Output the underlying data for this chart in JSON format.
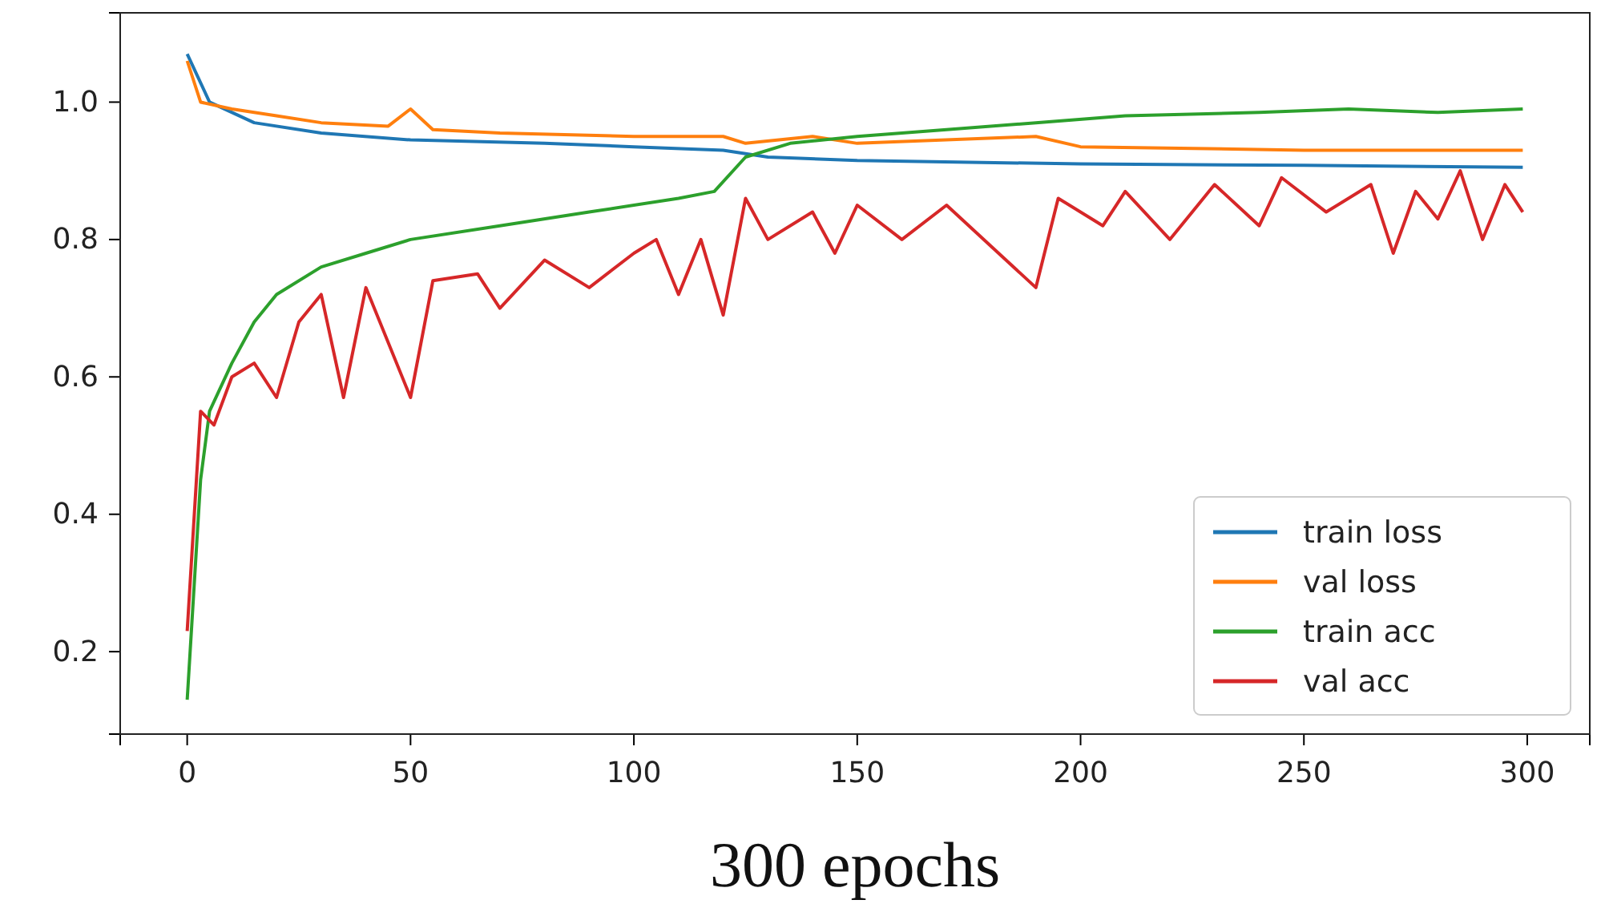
{
  "chart_data": {
    "type": "line",
    "xlabel": "300 epochs",
    "xlim": [
      -15,
      314
    ],
    "ylim": [
      0.08,
      1.13
    ],
    "xticks": [
      0,
      50,
      100,
      150,
      200,
      250,
      300
    ],
    "yticks": [
      {
        "value": 0.2,
        "label": "0.2"
      },
      {
        "value": 0.4,
        "label": "0.4"
      },
      {
        "value": 0.6,
        "label": "0.6"
      },
      {
        "value": 0.8,
        "label": "0.8"
      },
      {
        "value": 1.0,
        "label": "1.0"
      }
    ],
    "grid": false,
    "legend": "bottom right",
    "series": [
      {
        "name": "train loss",
        "color": "#1f77b4",
        "x": [
          0,
          5,
          15,
          30,
          50,
          80,
          100,
          120,
          130,
          150,
          200,
          250,
          299
        ],
        "values": [
          1.07,
          1.0,
          0.97,
          0.955,
          0.945,
          0.94,
          0.935,
          0.93,
          0.92,
          0.915,
          0.91,
          0.908,
          0.905
        ]
      },
      {
        "name": "val loss",
        "color": "#ff7f0e",
        "x": [
          0,
          3,
          10,
          20,
          30,
          45,
          50,
          55,
          70,
          100,
          120,
          125,
          140,
          150,
          190,
          200,
          250,
          299
        ],
        "values": [
          1.06,
          1.0,
          0.99,
          0.98,
          0.97,
          0.965,
          0.99,
          0.96,
          0.955,
          0.95,
          0.95,
          0.94,
          0.95,
          0.94,
          0.95,
          0.935,
          0.93,
          0.93
        ]
      },
      {
        "name": "train acc",
        "color": "#2ca02c",
        "x": [
          0,
          3,
          5,
          10,
          15,
          20,
          30,
          40,
          50,
          70,
          90,
          110,
          118,
          125,
          135,
          150,
          170,
          190,
          210,
          240,
          260,
          280,
          299
        ],
        "values": [
          0.13,
          0.45,
          0.55,
          0.62,
          0.68,
          0.72,
          0.76,
          0.78,
          0.8,
          0.82,
          0.84,
          0.86,
          0.87,
          0.92,
          0.94,
          0.95,
          0.96,
          0.97,
          0.98,
          0.985,
          0.99,
          0.985,
          0.99
        ]
      },
      {
        "name": "val acc",
        "color": "#d62728",
        "x": [
          0,
          3,
          6,
          10,
          15,
          20,
          25,
          30,
          35,
          40,
          50,
          55,
          65,
          70,
          80,
          90,
          100,
          105,
          110,
          115,
          120,
          125,
          130,
          140,
          145,
          150,
          160,
          170,
          180,
          190,
          195,
          205,
          210,
          220,
          230,
          240,
          245,
          255,
          265,
          270,
          275,
          280,
          285,
          290,
          295,
          299
        ],
        "values": [
          0.23,
          0.55,
          0.53,
          0.6,
          0.62,
          0.57,
          0.68,
          0.72,
          0.57,
          0.73,
          0.57,
          0.74,
          0.75,
          0.7,
          0.77,
          0.73,
          0.78,
          0.8,
          0.72,
          0.8,
          0.69,
          0.86,
          0.8,
          0.84,
          0.78,
          0.85,
          0.8,
          0.85,
          0.79,
          0.73,
          0.86,
          0.82,
          0.87,
          0.8,
          0.88,
          0.82,
          0.89,
          0.84,
          0.88,
          0.78,
          0.87,
          0.83,
          0.9,
          0.8,
          0.88,
          0.84
        ]
      }
    ]
  }
}
